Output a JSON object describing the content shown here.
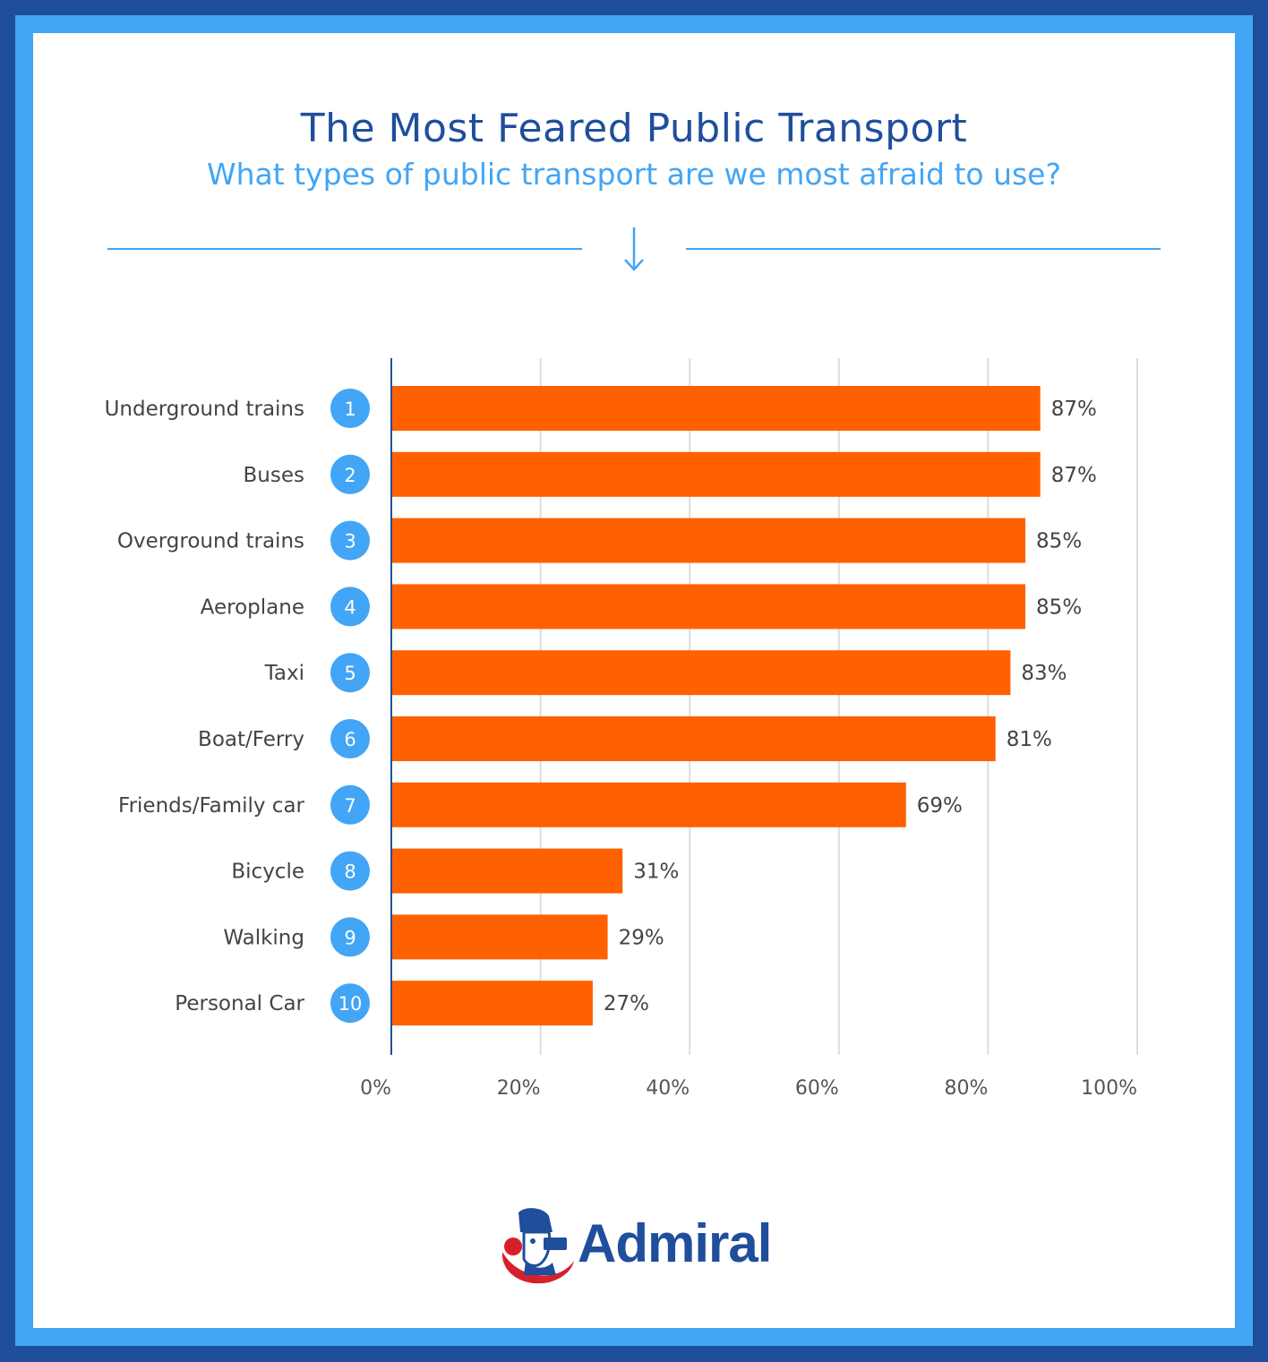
{
  "header": {
    "title": "The Most Feared Public Transport",
    "subtitle": "What types of public transport are we most afraid to use?"
  },
  "brand": {
    "name": "Admiral"
  },
  "colors": {
    "frame_dark": "#1f4e9c",
    "frame_light": "#42a5f5",
    "bar": "#ff6000",
    "badge": "#42a5f5",
    "title": "#1f4e9c",
    "subtitle": "#42a5f5",
    "logo_red": "#d6202b"
  },
  "chart_data": {
    "type": "bar",
    "orientation": "horizontal",
    "title": "The Most Feared Public Transport",
    "subtitle": "What types of public transport are we most afraid to use?",
    "categories": [
      "Underground trains",
      "Buses",
      "Overground trains",
      "Aeroplane",
      "Taxi",
      "Boat/Ferry",
      "Friends/Family car",
      "Bicycle",
      "Walking",
      "Personal Car"
    ],
    "ranks": [
      "1",
      "2",
      "3",
      "4",
      "5",
      "6",
      "7",
      "8",
      "9",
      "10"
    ],
    "values": [
      87,
      87,
      85,
      85,
      83,
      81,
      69,
      31,
      29,
      27
    ],
    "value_labels": [
      "87%",
      "87%",
      "85%",
      "85%",
      "83%",
      "81%",
      "69%",
      "31%",
      "29%",
      "27%"
    ],
    "xlim": [
      0,
      100
    ],
    "xticks": [
      0,
      20,
      40,
      60,
      80,
      100
    ],
    "xtick_labels": [
      "0%",
      "20%",
      "40%",
      "60%",
      "80%",
      "100%"
    ],
    "xlabel": "",
    "ylabel": "",
    "grid": true,
    "legend": "none"
  }
}
